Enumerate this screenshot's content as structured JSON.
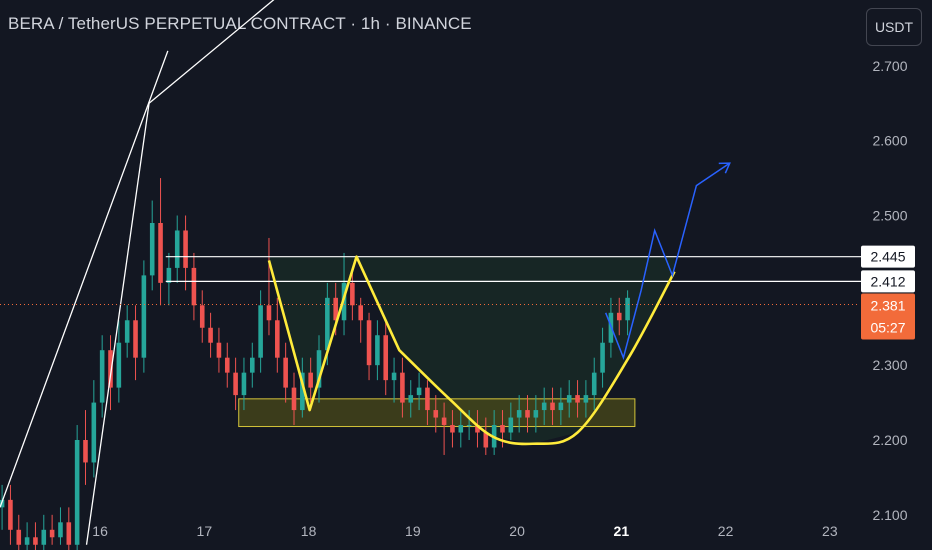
{
  "header": {
    "title": "BERA / TetherUS PERPETUAL CONTRACT · 1h · BINANCE",
    "currency_button": "USDT"
  },
  "chart_data": {
    "type": "candlestick",
    "symbol": "BERA / TetherUS PERPETUAL CONTRACT",
    "interval": "1h",
    "exchange": "BINANCE",
    "quote_currency": "USDT",
    "x_tick_labels": [
      "16",
      "17",
      "18",
      "19",
      "20",
      "21",
      "22",
      "23"
    ],
    "x_ticks": [
      16,
      17,
      18,
      19,
      20,
      21,
      22,
      23
    ],
    "x_range": [
      15.04,
      23.98
    ],
    "y_tick_labels": [
      "2.700",
      "2.600",
      "2.500",
      "2.300",
      "2.200",
      "2.100"
    ],
    "y_ticks": [
      2.7,
      2.6,
      2.5,
      2.3,
      2.2,
      2.1
    ],
    "y_range": [
      2.053,
      2.788
    ],
    "grid": false,
    "colors": {
      "background": "#131722",
      "up": "#26a69a",
      "down": "#ef5350",
      "pattern_line": "#ffeb3b",
      "projection": "#2962ff",
      "channel": "#ffffff",
      "support_zone": "#4a4a1a",
      "price_label": "#f26b3a"
    },
    "current_price": {
      "label": "2.381",
      "value": 2.381,
      "countdown": "05:27"
    },
    "levels": [
      {
        "label": "2.445",
        "value": 2.445
      },
      {
        "label": "2.412",
        "value": 2.412
      }
    ],
    "support_zone": {
      "x0": 17.33,
      "x1": 21.13,
      "y0": 2.218,
      "y1": 2.255
    },
    "rising_channel": [
      {
        "x": [
          15.04,
          16.65
        ],
        "y": [
          2.11,
          2.72
        ]
      },
      {
        "x": [
          15.87,
          16.47
        ],
        "y": [
          2.06,
          2.65
        ]
      },
      {
        "x": [
          16.47,
          17.68
        ],
        "y": [
          2.65,
          2.79
        ]
      }
    ],
    "resistance_lines": [
      {
        "x0": 16.63,
        "x1": 23.45,
        "y": 2.445
      },
      {
        "x0": 16.63,
        "x1": 23.45,
        "y": 2.412
      }
    ],
    "w_pattern": {
      "x": [
        17.62,
        18.01,
        18.46,
        18.87,
        19.35,
        19.76,
        20.15,
        20.58,
        21.07,
        21.51
      ],
      "y": [
        2.44,
        2.24,
        2.445,
        2.32,
        2.255,
        2.205,
        2.195,
        2.21,
        2.31,
        2.425
      ]
    },
    "projection_path": {
      "x": [
        20.85,
        21.02,
        21.19,
        21.32,
        21.49,
        21.72,
        22.04
      ],
      "y": [
        2.37,
        2.31,
        2.4,
        2.48,
        2.42,
        2.54,
        2.57
      ]
    },
    "candles": {
      "x": [
        15.06,
        15.14,
        15.22,
        15.3,
        15.38,
        15.46,
        15.54,
        15.62,
        15.7,
        15.78,
        15.86,
        15.94,
        16.02,
        16.1,
        16.18,
        16.26,
        16.34,
        16.42,
        16.5,
        16.58,
        16.66,
        16.74,
        16.82,
        16.9,
        16.98,
        17.06,
        17.14,
        17.22,
        17.3,
        17.38,
        17.46,
        17.54,
        17.62,
        17.7,
        17.78,
        17.86,
        17.94,
        18.02,
        18.1,
        18.18,
        18.26,
        18.34,
        18.42,
        18.5,
        18.58,
        18.66,
        18.74,
        18.82,
        18.9,
        18.98,
        19.06,
        19.14,
        19.22,
        19.3,
        19.38,
        19.46,
        19.54,
        19.62,
        19.7,
        19.78,
        19.86,
        19.94,
        20.02,
        20.1,
        20.18,
        20.26,
        20.34,
        20.42,
        20.5,
        20.58,
        20.66,
        20.74,
        20.82,
        20.9,
        20.98,
        21.06
      ],
      "open": [
        2.11,
        2.12,
        2.08,
        2.06,
        2.07,
        2.06,
        2.08,
        2.07,
        2.09,
        2.06,
        2.2,
        2.17,
        2.25,
        2.32,
        2.27,
        2.33,
        2.36,
        2.31,
        2.42,
        2.49,
        2.41,
        2.43,
        2.48,
        2.43,
        2.38,
        2.35,
        2.33,
        2.31,
        2.29,
        2.26,
        2.29,
        2.31,
        2.38,
        2.36,
        2.31,
        2.27,
        2.24,
        2.29,
        2.27,
        2.32,
        2.39,
        2.36,
        2.41,
        2.38,
        2.36,
        2.3,
        2.34,
        2.28,
        2.29,
        2.25,
        2.26,
        2.27,
        2.24,
        2.23,
        2.22,
        2.21,
        2.22,
        2.22,
        2.21,
        2.19,
        2.22,
        2.21,
        2.23,
        2.24,
        2.23,
        2.24,
        2.25,
        2.24,
        2.25,
        2.26,
        2.25,
        2.26,
        2.29,
        2.33,
        2.37,
        2.36
      ],
      "close": [
        2.12,
        2.08,
        2.06,
        2.07,
        2.06,
        2.08,
        2.07,
        2.09,
        2.06,
        2.2,
        2.17,
        2.25,
        2.32,
        2.27,
        2.33,
        2.36,
        2.31,
        2.42,
        2.49,
        2.41,
        2.43,
        2.48,
        2.43,
        2.38,
        2.35,
        2.33,
        2.31,
        2.29,
        2.26,
        2.29,
        2.31,
        2.38,
        2.36,
        2.31,
        2.27,
        2.24,
        2.29,
        2.27,
        2.32,
        2.39,
        2.36,
        2.41,
        2.38,
        2.36,
        2.3,
        2.34,
        2.28,
        2.29,
        2.25,
        2.26,
        2.27,
        2.24,
        2.23,
        2.22,
        2.21,
        2.22,
        2.22,
        2.21,
        2.19,
        2.22,
        2.21,
        2.23,
        2.24,
        2.23,
        2.24,
        2.25,
        2.24,
        2.25,
        2.26,
        2.25,
        2.26,
        2.29,
        2.33,
        2.37,
        2.36,
        2.39
      ],
      "high": [
        2.14,
        2.14,
        2.1,
        2.09,
        2.09,
        2.1,
        2.1,
        2.11,
        2.11,
        2.22,
        2.24,
        2.28,
        2.34,
        2.34,
        2.36,
        2.38,
        2.38,
        2.44,
        2.52,
        2.55,
        2.45,
        2.5,
        2.5,
        2.45,
        2.4,
        2.37,
        2.35,
        2.33,
        2.31,
        2.31,
        2.33,
        2.4,
        2.47,
        2.39,
        2.33,
        2.29,
        2.31,
        2.31,
        2.34,
        2.41,
        2.41,
        2.45,
        2.43,
        2.39,
        2.37,
        2.36,
        2.36,
        2.31,
        2.31,
        2.28,
        2.29,
        2.28,
        2.26,
        2.25,
        2.24,
        2.24,
        2.24,
        2.24,
        2.23,
        2.24,
        2.24,
        2.25,
        2.26,
        2.26,
        2.26,
        2.27,
        2.27,
        2.27,
        2.28,
        2.28,
        2.28,
        2.31,
        2.35,
        2.39,
        2.39,
        2.4
      ],
      "low": [
        2.08,
        2.06,
        2.05,
        2.05,
        2.05,
        2.05,
        2.06,
        2.06,
        2.05,
        2.05,
        2.14,
        2.15,
        2.23,
        2.24,
        2.25,
        2.31,
        2.28,
        2.29,
        2.4,
        2.38,
        2.38,
        2.41,
        2.4,
        2.36,
        2.33,
        2.31,
        2.29,
        2.27,
        2.24,
        2.24,
        2.27,
        2.29,
        2.34,
        2.29,
        2.25,
        2.22,
        2.23,
        2.25,
        2.25,
        2.3,
        2.34,
        2.34,
        2.36,
        2.33,
        2.28,
        2.28,
        2.26,
        2.25,
        2.23,
        2.23,
        2.24,
        2.22,
        2.21,
        2.18,
        2.19,
        2.19,
        2.2,
        2.19,
        2.18,
        2.18,
        2.19,
        2.2,
        2.21,
        2.21,
        2.21,
        2.22,
        2.22,
        2.22,
        2.23,
        2.23,
        2.23,
        2.24,
        2.27,
        2.31,
        2.34,
        2.34
      ]
    }
  }
}
